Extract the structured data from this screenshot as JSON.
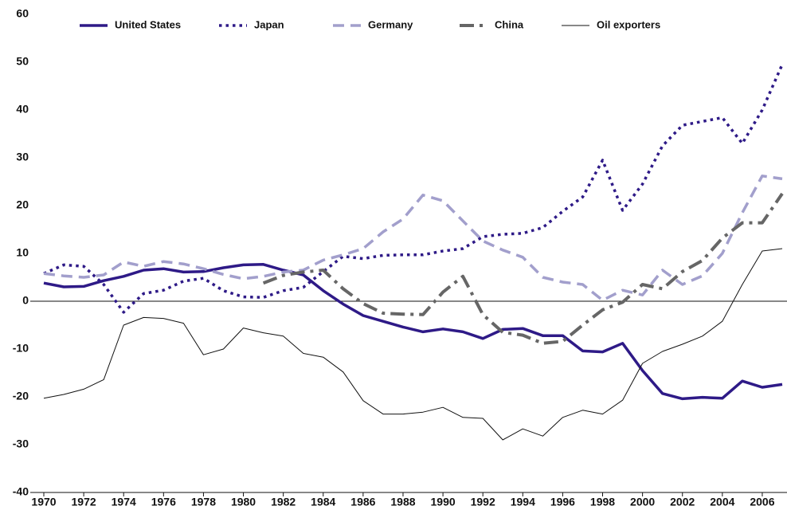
{
  "chart_data": {
    "type": "line",
    "x": [
      1970,
      1971,
      1972,
      1973,
      1974,
      1975,
      1976,
      1977,
      1978,
      1979,
      1980,
      1981,
      1982,
      1983,
      1984,
      1985,
      1986,
      1987,
      1988,
      1989,
      1990,
      1991,
      1992,
      1993,
      1994,
      1995,
      1996,
      1997,
      1998,
      1999,
      2000,
      2001,
      2002,
      2003,
      2004,
      2005,
      2006,
      2007
    ],
    "xlim": [
      1970,
      2007
    ],
    "xticks": [
      1970,
      1972,
      1974,
      1976,
      1978,
      1980,
      1982,
      1984,
      1986,
      1988,
      1990,
      1992,
      1994,
      1996,
      1998,
      2000,
      2002,
      2004,
      2006
    ],
    "ylim": [
      -40,
      60
    ],
    "yticks": [
      -40,
      -30,
      -20,
      -10,
      0,
      10,
      20,
      30,
      40,
      50,
      60
    ],
    "legend": "top",
    "series": [
      {
        "name": "United States",
        "color": "#2e1a87",
        "dash": "solid",
        "width": 3.5,
        "values": [
          3.8,
          3,
          3.1,
          4.3,
          5.2,
          6.5,
          6.8,
          6.1,
          6.2,
          7,
          7.6,
          7.7,
          6.5,
          5.5,
          2.2,
          -0.6,
          -3,
          -4.2,
          -5.4,
          -6.4,
          -5.8,
          -6.4,
          -7.8,
          -5.9,
          -5.7,
          -7.2,
          -7.2,
          -10.4,
          -10.6,
          -8.8,
          -14.5,
          -19.3,
          -20.4,
          -20.1,
          -20.3,
          -16.7,
          -18,
          -17.4
        ]
      },
      {
        "name": "Japan",
        "color": "#2e1a87",
        "dash": "dotted",
        "width": 3.5,
        "values": [
          5.8,
          7.6,
          7.3,
          3.5,
          -2.3,
          1.6,
          2.3,
          4.2,
          4.8,
          2.2,
          0.9,
          0.8,
          2.2,
          2.9,
          6.2,
          9.4,
          8.9,
          9.6,
          9.7,
          9.7,
          10.5,
          11,
          13.5,
          14,
          14.2,
          15.4,
          18.8,
          21.8,
          29.5,
          19,
          24.5,
          32.5,
          36.8,
          37.6,
          38.4,
          33,
          40,
          49.5
        ]
      },
      {
        "name": "Germany",
        "color": "#a29fcc",
        "dash": "dashed",
        "width": 3.5,
        "values": [
          5.8,
          5.3,
          5,
          5.5,
          8.2,
          7.3,
          8.3,
          7.8,
          6.8,
          5.6,
          4.7,
          5.2,
          6.1,
          6.5,
          8.6,
          9.7,
          11,
          14.5,
          17.2,
          22.2,
          21,
          16.8,
          12.6,
          10.7,
          9.2,
          5,
          4,
          3.5,
          0.2,
          2.3,
          1.3,
          6.5,
          3.5,
          5.3,
          10,
          18.5,
          26.2,
          25.6
        ]
      },
      {
        "name": "China",
        "color": "#666666",
        "dash": "dashdot",
        "width": 4,
        "values": [
          null,
          null,
          null,
          null,
          null,
          null,
          null,
          null,
          null,
          null,
          null,
          3.8,
          5.4,
          6.1,
          6.5,
          2.6,
          -0.5,
          -2.5,
          -2.7,
          -2.8,
          1.9,
          5.2,
          -2.8,
          -6.5,
          -7.1,
          -8.8,
          -8.4,
          -5,
          -1.8,
          -0.2,
          3.5,
          2.6,
          6.2,
          8.5,
          13.2,
          16.4,
          16.4,
          22.5
        ]
      },
      {
        "name": "Oil exporters",
        "color": "#111111",
        "dash": "solid",
        "width": 1,
        "values": [
          -20.3,
          -19.5,
          -18.4,
          -16.4,
          -5,
          -3.4,
          -3.6,
          -4.6,
          -11.2,
          -10,
          -5.6,
          -6.6,
          -7.3,
          -10.9,
          -11.7,
          -14.8,
          -20.8,
          -23.6,
          -23.6,
          -23.2,
          -22.2,
          -24.3,
          -24.5,
          -29,
          -26.7,
          -28.2,
          -24.3,
          -22.8,
          -23.6,
          -20.7,
          -13,
          -10.5,
          -9,
          -7.3,
          -4.2,
          3.5,
          10.5,
          11
        ]
      }
    ]
  }
}
